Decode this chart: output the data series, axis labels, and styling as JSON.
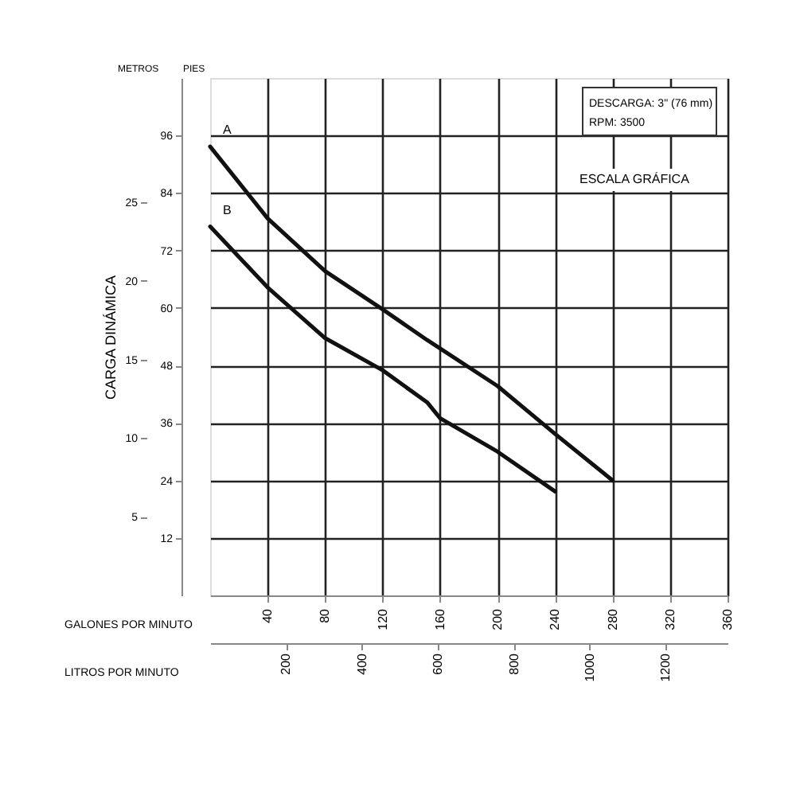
{
  "chart_data": {
    "type": "line",
    "xlabel": "GALONES POR MINUTO",
    "x2label": "LITROS POR MINUTO",
    "y2label": "CARGA DINÁMICA",
    "annotations": [
      "METROS",
      "PIES",
      "DESCARGA: 3\" (76 mm)",
      "RPM: 3500",
      "ESCALA GRÁFICA"
    ],
    "x": [
      0,
      40,
      80,
      120,
      151,
      200,
      240,
      280
    ],
    "series": [
      {
        "name": "A",
        "color": "#111111",
        "values": [
          93.7,
          78.7,
          67.7,
          59.7,
          53.3,
          43.7,
          33.7,
          24
        ]
      },
      {
        "name": "B",
        "color": "#111111",
        "x": [
          0,
          40,
          80,
          120,
          151,
          160,
          200,
          240
        ],
        "values": [
          77,
          64.3,
          53.7,
          47,
          40.3,
          37,
          30,
          21.7
        ]
      }
    ],
    "xlim": [
      0,
      360
    ],
    "xticks": [
      40,
      80,
      120,
      160,
      200,
      240,
      280,
      320,
      360
    ],
    "x2lim": [
      0,
      1363
    ],
    "x2ticks": [
      200,
      400,
      600,
      800,
      1000,
      1200
    ],
    "ylim": [
      0,
      108
    ],
    "yticks": [
      12,
      24,
      36,
      48,
      60,
      72,
      84,
      96
    ],
    "y2lim": [
      0,
      32.9
    ],
    "y2ticks": [
      5,
      10,
      15,
      20,
      25
    ],
    "grid": true,
    "legend": false,
    "marker": "none",
    "line_style": "solid"
  }
}
